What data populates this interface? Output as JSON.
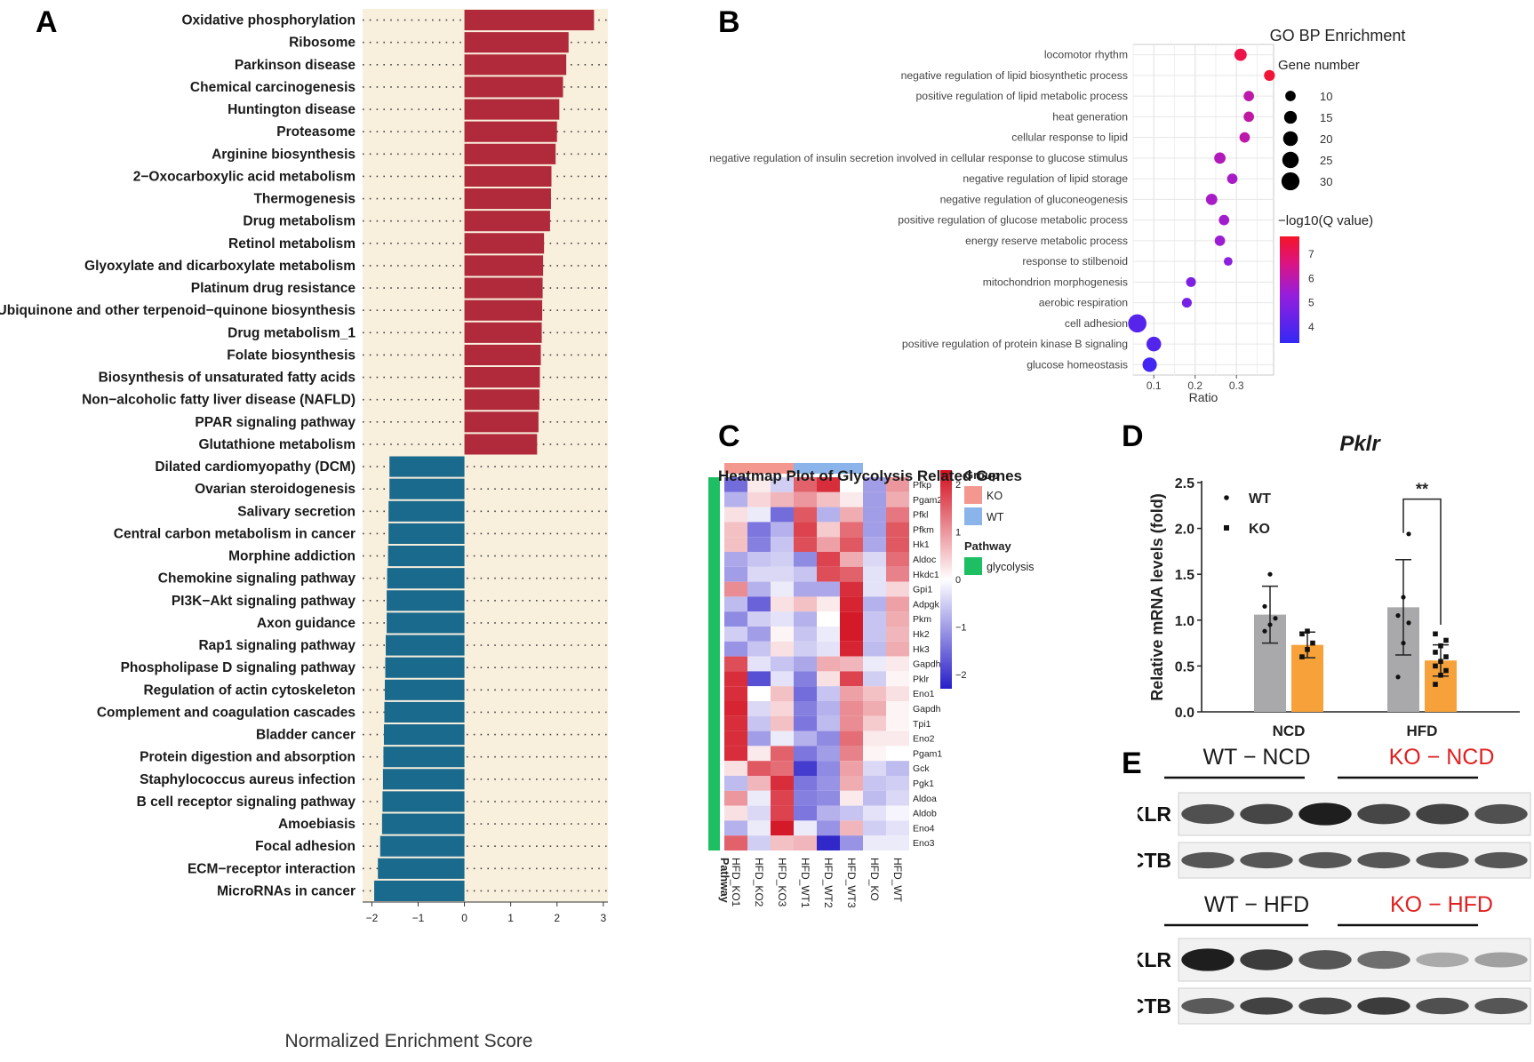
{
  "panels": {
    "a": "A",
    "b": "B",
    "c": "C",
    "d": "D",
    "e": "E"
  },
  "panel_a": {
    "xlabel": "Normalized Enrichment Score",
    "xticks": [
      -2,
      -1,
      0,
      1,
      2,
      3
    ],
    "xlim": [
      -2.2,
      3.1
    ],
    "colors": {
      "positive": "#b02a3b",
      "negative": "#1a6a8e",
      "background": "#f9efdd"
    },
    "terms": [
      {
        "label": "Oxidative phosphorylation",
        "nes": 2.8
      },
      {
        "label": "Ribosome",
        "nes": 2.25
      },
      {
        "label": "Parkinson disease",
        "nes": 2.2
      },
      {
        "label": "Chemical carcinogenesis",
        "nes": 2.13
      },
      {
        "label": "Huntington disease",
        "nes": 2.05
      },
      {
        "label": "Proteasome",
        "nes": 2.0
      },
      {
        "label": "Arginine biosynthesis",
        "nes": 1.97
      },
      {
        "label": "2−Oxocarboxylic acid metabolism",
        "nes": 1.88
      },
      {
        "label": "Thermogenesis",
        "nes": 1.87
      },
      {
        "label": "Drug metabolism",
        "nes": 1.85
      },
      {
        "label": "Retinol metabolism",
        "nes": 1.72
      },
      {
        "label": "Glyoxylate and dicarboxylate metabolism",
        "nes": 1.7
      },
      {
        "label": "Platinum drug resistance",
        "nes": 1.69
      },
      {
        "label": "Ubiquinone and other terpenoid−quinone biosynthesis",
        "nes": 1.68
      },
      {
        "label": "Drug metabolism_1",
        "nes": 1.67
      },
      {
        "label": "Folate biosynthesis",
        "nes": 1.65
      },
      {
        "label": "Biosynthesis of unsaturated fatty acids",
        "nes": 1.63
      },
      {
        "label": "Non−alcoholic fatty liver disease (NAFLD)",
        "nes": 1.62
      },
      {
        "label": "PPAR signaling pathway",
        "nes": 1.6
      },
      {
        "label": "Glutathione metabolism",
        "nes": 1.57
      },
      {
        "label": "Dilated cardiomyopathy (DCM)",
        "nes": -1.62
      },
      {
        "label": "Ovarian steroidogenesis",
        "nes": -1.62
      },
      {
        "label": "Salivary secretion",
        "nes": -1.64
      },
      {
        "label": "Central carbon metabolism in cancer",
        "nes": -1.64
      },
      {
        "label": "Morphine addiction",
        "nes": -1.65
      },
      {
        "label": "Chemokine signaling pathway",
        "nes": -1.67
      },
      {
        "label": "PI3K−Akt signaling pathway",
        "nes": -1.68
      },
      {
        "label": "Axon guidance",
        "nes": -1.68
      },
      {
        "label": "Rap1 signaling pathway",
        "nes": -1.7
      },
      {
        "label": "Phospholipase D signaling pathway",
        "nes": -1.71
      },
      {
        "label": "Regulation of actin cytoskeleton",
        "nes": -1.72
      },
      {
        "label": "Complement and coagulation cascades",
        "nes": -1.73
      },
      {
        "label": "Bladder cancer",
        "nes": -1.74
      },
      {
        "label": "Protein digestion and absorption",
        "nes": -1.75
      },
      {
        "label": "Staphylococcus aureus infection",
        "nes": -1.76
      },
      {
        "label": "B cell receptor signaling pathway",
        "nes": -1.77
      },
      {
        "label": "Amoebiasis",
        "nes": -1.78
      },
      {
        "label": "Focal adhesion",
        "nes": -1.82
      },
      {
        "label": "ECM−receptor interaction",
        "nes": -1.87
      },
      {
        "label": "MicroRNAs in cancer",
        "nes": -1.95
      }
    ]
  },
  "panel_b": {
    "title": "GO BP Enrichment",
    "xlabel": "Ratio",
    "xticks": [
      0.1,
      0.2,
      0.3
    ],
    "xlim": [
      0.05,
      0.39
    ],
    "size_legend_title": "Gene number",
    "size_legend": [
      10,
      15,
      20,
      25,
      30
    ],
    "color_legend_title": "−log10(Q value)",
    "color_ticks": [
      4,
      5,
      6,
      7
    ],
    "color_range": [
      3.3,
      7.7
    ],
    "terms": [
      {
        "label": "locomotor rhythm",
        "ratio": 0.31,
        "count": 14,
        "q": 7.3
      },
      {
        "label": "negative regulation of lipid biosynthetic process",
        "ratio": 0.38,
        "count": 11,
        "q": 7.5
      },
      {
        "label": "positive regulation of lipid metabolic process",
        "ratio": 0.33,
        "count": 10,
        "q": 6.0
      },
      {
        "label": "heat generation",
        "ratio": 0.33,
        "count": 10,
        "q": 6.1
      },
      {
        "label": "cellular response to lipid",
        "ratio": 0.32,
        "count": 10,
        "q": 6.0
      },
      {
        "label": "negative regulation of insulin secretion involved in cellular response to glucose stimulus",
        "ratio": 0.26,
        "count": 12,
        "q": 5.8
      },
      {
        "label": "negative regulation of lipid storage",
        "ratio": 0.29,
        "count": 10,
        "q": 5.6
      },
      {
        "label": "negative regulation of gluconeogenesis",
        "ratio": 0.24,
        "count": 12,
        "q": 5.6
      },
      {
        "label": "positive regulation of glucose metabolic process",
        "ratio": 0.27,
        "count": 10,
        "q": 5.5
      },
      {
        "label": "energy reserve metabolic process",
        "ratio": 0.26,
        "count": 10,
        "q": 5.4
      },
      {
        "label": "response to stilbenoid",
        "ratio": 0.28,
        "count": 7,
        "q": 5.1
      },
      {
        "label": "mitochondrion morphogenesis",
        "ratio": 0.19,
        "count": 9,
        "q": 4.8
      },
      {
        "label": "aerobic respiration",
        "ratio": 0.18,
        "count": 9,
        "q": 4.6
      },
      {
        "label": "cell adhesion",
        "ratio": 0.06,
        "count": 31,
        "q": 4.0
      },
      {
        "label": "positive regulation of protein kinase B signaling",
        "ratio": 0.1,
        "count": 20,
        "q": 3.9
      },
      {
        "label": "glucose homeostasis",
        "ratio": 0.09,
        "count": 19,
        "q": 3.6
      }
    ]
  },
  "panel_c": {
    "title": "Heatmap Plot of Glycolysis Related Genes",
    "samples": [
      "HFD_KO1",
      "HFD_KO2",
      "HFD_KO3",
      "HFD_WT1",
      "HFD_WT2",
      "HFD_WT3",
      "HFD_KO",
      "HFD_WT"
    ],
    "sample_groups": [
      "KO",
      "KO",
      "KO",
      "WT",
      "WT",
      "WT",
      "",
      ""
    ],
    "pathway_label": "Pathway",
    "legend": {
      "group_title": "Group",
      "groups": [
        "KO",
        "WT"
      ],
      "pathway_title": "Pathway",
      "pathway": "glycolysis",
      "scale_ticks": [
        2,
        1,
        0,
        -1,
        -2
      ]
    },
    "colors": {
      "KO": "#f4978e",
      "WT": "#8bb4ea",
      "glycolysis": "#1dbf62"
    },
    "genes": [
      "Pfkp",
      "Pgam2",
      "Pfkl",
      "Pfkm",
      "Hk1",
      "Aldoc",
      "Hkdc1",
      "Gpi1",
      "Adpgk",
      "Pkm",
      "Hk2",
      "Hk3",
      "Gapdhs",
      "Pklr",
      "Eno1",
      "Gapdh",
      "Tpi1",
      "Eno2",
      "Pgam1",
      "Gck",
      "Pgk1",
      "Aldoa",
      "Aldob",
      "Eno4",
      "Eno3"
    ],
    "values": [
      [
        -1.5,
        0.2,
        -0.5,
        1.5,
        2.0,
        0.0,
        -1.0,
        1.0
      ],
      [
        -0.8,
        0.4,
        0.7,
        1.0,
        0.6,
        0.2,
        -1.0,
        0.8
      ],
      [
        0.3,
        -0.2,
        -1.5,
        1.6,
        -0.8,
        0.8,
        -1.0,
        1.3
      ],
      [
        0.6,
        -1.4,
        -0.8,
        1.8,
        0.5,
        1.4,
        -1.0,
        1.6
      ],
      [
        0.6,
        -1.3,
        -0.6,
        1.7,
        0.9,
        1.6,
        -0.9,
        1.6
      ],
      [
        -0.9,
        -0.6,
        -0.5,
        -1.2,
        1.8,
        0.8,
        -0.4,
        1.4
      ],
      [
        -1.0,
        -0.4,
        -0.4,
        -0.6,
        1.7,
        1.5,
        -0.3,
        1.2
      ],
      [
        1.1,
        -0.8,
        -0.2,
        -0.9,
        -0.9,
        2.0,
        -0.3,
        0.4
      ],
      [
        -0.7,
        -1.6,
        0.3,
        0.6,
        0.2,
        2.1,
        -0.8,
        0.9
      ],
      [
        -1.2,
        -0.5,
        -0.3,
        -0.8,
        0.0,
        2.2,
        -0.6,
        0.8
      ],
      [
        -0.5,
        -1.0,
        0.1,
        -0.6,
        -0.2,
        2.2,
        -0.6,
        0.7
      ],
      [
        -1.1,
        -0.6,
        0.3,
        -0.5,
        -0.3,
        2.1,
        -0.7,
        0.8
      ],
      [
        1.7,
        -0.3,
        -0.6,
        -0.9,
        0.8,
        0.7,
        -0.2,
        0.2
      ],
      [
        2.0,
        -1.8,
        -0.3,
        -1.3,
        0.3,
        1.8,
        -0.5,
        0.1
      ],
      [
        2.0,
        0.0,
        0.6,
        -1.5,
        -0.6,
        0.9,
        0.6,
        0.3
      ],
      [
        2.1,
        -0.4,
        0.4,
        -1.3,
        -0.8,
        1.1,
        0.8,
        0.1
      ],
      [
        2.0,
        -0.6,
        0.6,
        -1.4,
        -0.7,
        1.1,
        0.5,
        0.1
      ],
      [
        2.0,
        -1.0,
        -0.2,
        -0.8,
        -1.2,
        1.4,
        0.2,
        0.2
      ],
      [
        2.0,
        0.2,
        1.5,
        -1.4,
        -1.0,
        1.2,
        0.1,
        0.0
      ],
      [
        0.3,
        1.6,
        1.4,
        -2.0,
        -1.2,
        0.9,
        -0.4,
        -0.7
      ],
      [
        -0.7,
        0.7,
        2.0,
        -1.4,
        -1.1,
        0.8,
        -0.6,
        -0.5
      ],
      [
        1.0,
        -0.2,
        1.8,
        -1.3,
        -1.2,
        0.2,
        -0.7,
        -0.4
      ],
      [
        0.3,
        -0.4,
        1.8,
        -1.4,
        -0.8,
        -0.6,
        -0.3,
        -0.1
      ],
      [
        -0.8,
        -0.2,
        2.2,
        -0.2,
        -1.1,
        0.7,
        -0.5,
        -0.3
      ],
      [
        1.5,
        -0.5,
        0.6,
        0.7,
        -2.2,
        -1.1,
        -0.2,
        -0.2
      ]
    ]
  },
  "panel_d": {
    "title": "Pklr",
    "ylabel": "Relative mRNA levels (fold)",
    "yticks": [
      0.0,
      0.5,
      1.0,
      1.5,
      2.0,
      2.5
    ],
    "ylim": [
      0,
      2.5
    ],
    "categories": [
      "NCD",
      "HFD"
    ],
    "legend": [
      "WT",
      "KO"
    ],
    "significance": "**",
    "colors": {
      "WT": "#a9a9ac",
      "KO": "#f6a13a"
    },
    "series": [
      {
        "name": "WT",
        "means": [
          1.06,
          1.14
        ],
        "sd": [
          0.31,
          0.52
        ],
        "points": [
          [
            0.88,
            0.95,
            1.02,
            1.15,
            1.5
          ],
          [
            0.38,
            0.75,
            0.97,
            1.05,
            1.25,
            1.94
          ]
        ]
      },
      {
        "name": "KO",
        "means": [
          0.73,
          0.56
        ],
        "sd": [
          0.14,
          0.17
        ],
        "points": [
          [
            0.6,
            0.68,
            0.75,
            0.85,
            0.88
          ],
          [
            0.3,
            0.4,
            0.45,
            0.5,
            0.55,
            0.6,
            0.65,
            0.72,
            0.78,
            0.85
          ]
        ]
      }
    ]
  },
  "panel_e": {
    "blot1_groups": [
      "WT − NCD",
      "KO − NCD"
    ],
    "blot2_groups": [
      "WT − HFD",
      "KO − HFD"
    ],
    "rows": [
      "PKLR",
      "ACTB"
    ],
    "group_colors": [
      "#1a1a1a",
      "#e02020"
    ],
    "blot1_pklr": [
      0.75,
      0.8,
      1.0,
      0.8,
      0.82,
      0.75
    ],
    "blot1_actb": [
      0.72,
      0.72,
      0.72,
      0.72,
      0.72,
      0.72
    ],
    "blot2_pklr": [
      1.0,
      0.85,
      0.72,
      0.6,
      0.3,
      0.35
    ],
    "blot2_actb": [
      0.7,
      0.82,
      0.8,
      0.85,
      0.75,
      0.72
    ]
  }
}
